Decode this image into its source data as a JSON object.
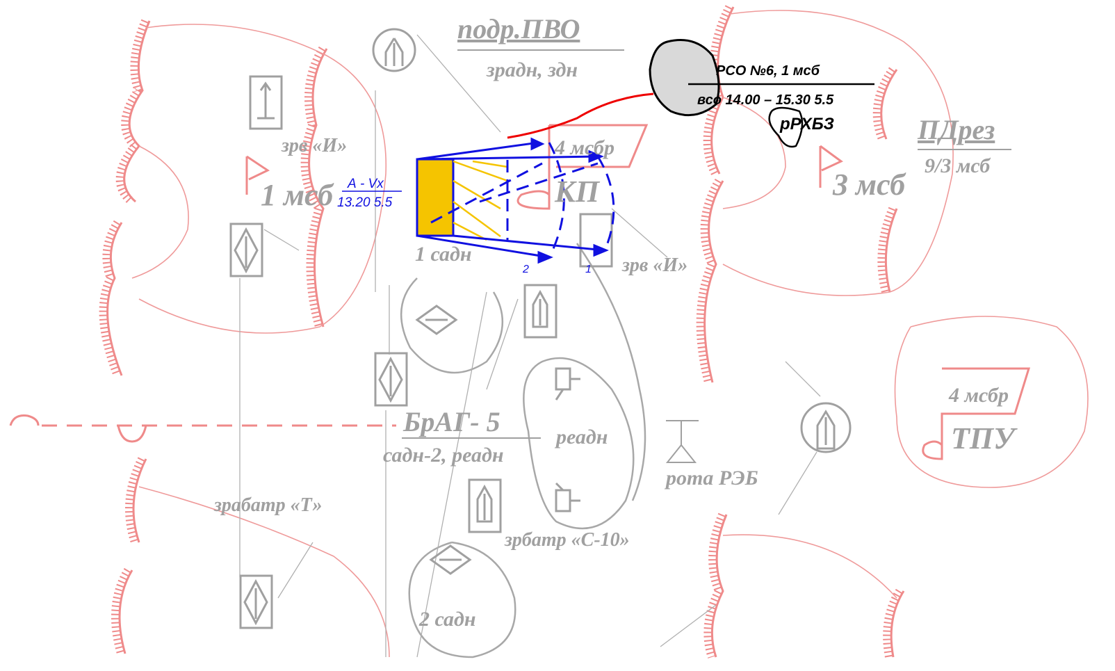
{
  "labels": {
    "air_defense_title": "подр.ПВО",
    "air_defense_sub": "зрадн, здн",
    "rso_title": "РСО №6,  1 мсб",
    "rso_sub": "всо 14.00 – 15.30 5.5",
    "rhbz": "рРХБЗ",
    "kp_unit": "4 мсбр",
    "kp": "КП",
    "pdrez": "ПДрез",
    "pdrez_sub": "9/3 мсб",
    "zrv_left": "зрв «И»",
    "msb1": "1 мсб",
    "route_title": "А - Vx",
    "route_sub": "13.20 5.5",
    "msb3": "3 мсб",
    "sadn1": "1 садн",
    "arrow2": "2",
    "arrow1": "1",
    "zrv_right": "зрв «И»",
    "brag": "БрАГ- 5",
    "brag_sub": "садн-2, реадн",
    "readn": "реадн",
    "reb": "рота РЭБ",
    "tpu_unit": "4 мсбр",
    "tpu": "ТПУ",
    "zrabatr": "зрабатр «Т»",
    "zrbatr": "зрбатр «С-10»",
    "sadn2": "2 садн"
  }
}
